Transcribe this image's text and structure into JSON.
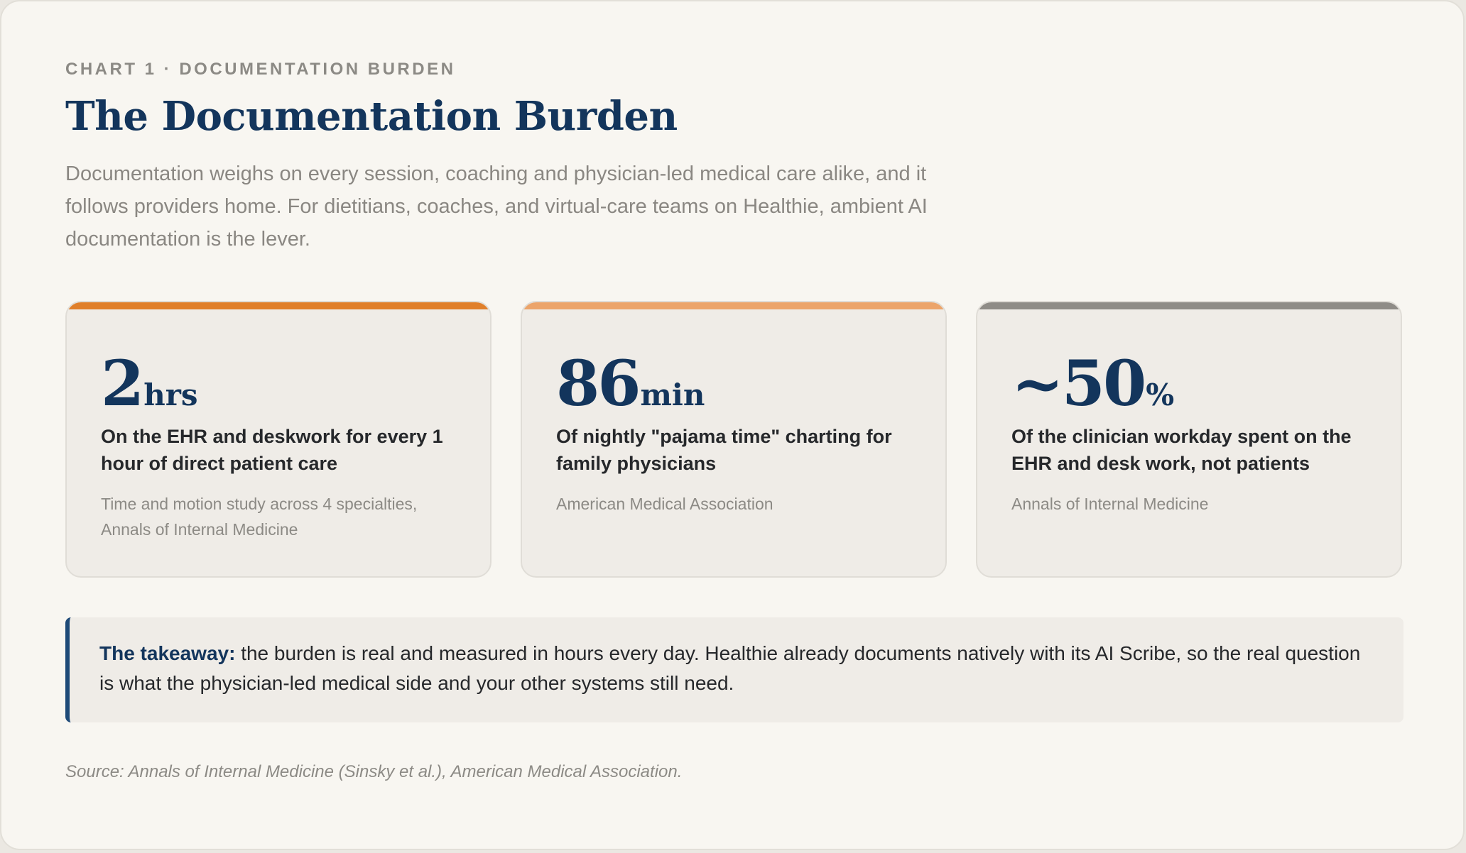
{
  "header": {
    "eyebrow": "CHART 1 · DOCUMENTATION BURDEN",
    "title": "The Documentation Burden",
    "subtitle": "Documentation weighs on every session, coaching and physician-led medical care alike, and it follows providers home. For dietitians, coaches, and virtual-care teams on Healthie, ambient AI documentation is the lever."
  },
  "stats": [
    {
      "number": "2",
      "unit": "hrs",
      "headline": "On the EHR and deskwork for every 1 hour of direct patient care",
      "source": "Time and motion study across 4 specialties, Annals of Internal Medicine",
      "accent_color": "#e07f2a"
    },
    {
      "number": "86",
      "unit": "min",
      "headline": "Of nightly \"pajama time\" charting for family physicians",
      "source": "American Medical Association",
      "accent_color": "#eca46a"
    },
    {
      "number": "~50",
      "unit": "%",
      "headline": "Of the clinician workday spent on the EHR and desk work, not patients",
      "source": "Annals of Internal Medicine",
      "accent_color": "#8f8c87"
    }
  ],
  "takeaway": {
    "label": "The takeaway:",
    "text": " the burden is real and measured in hours every day. Healthie already documents natively with its AI Scribe, so the real question is what the physician-led medical side and your other systems still need."
  },
  "footnote": "Source: Annals of Internal Medicine (Sinsky et al.), American Medical Association."
}
